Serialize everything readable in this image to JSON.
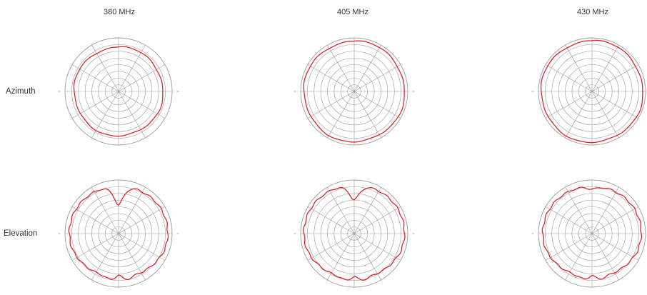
{
  "colors": {
    "grid": "#9a9a9a",
    "pattern": "#e0242b",
    "text": "#333333"
  },
  "chart_data": {
    "type": "polar",
    "grid": true,
    "rings": 8,
    "spokes_deg": 30,
    "columns": [
      "380 MHz",
      "405 MHz",
      "430 MHz"
    ],
    "rows": [
      "Azimuth",
      "Elevation"
    ],
    "plots": [
      {
        "row": "Azimuth",
        "column": "380 MHz",
        "pattern": "omni",
        "level": 0.83
      },
      {
        "row": "Azimuth",
        "column": "405 MHz",
        "pattern": "omni",
        "level": 0.94
      },
      {
        "row": "Azimuth",
        "column": "430 MHz",
        "pattern": "omni",
        "level": 0.95
      },
      {
        "row": "Elevation",
        "column": "380 MHz",
        "pattern": "elev",
        "level": 0.9,
        "top_null": 0.55,
        "bottom_dip": 0.78
      },
      {
        "row": "Elevation",
        "column": "405 MHz",
        "pattern": "elev",
        "level": 0.92,
        "top_null": 0.65,
        "bottom_dip": 0.82
      },
      {
        "row": "Elevation",
        "column": "430 MHz",
        "pattern": "elev",
        "level": 0.9,
        "top_null": 0.85,
        "bottom_dip": 0.8
      }
    ]
  }
}
